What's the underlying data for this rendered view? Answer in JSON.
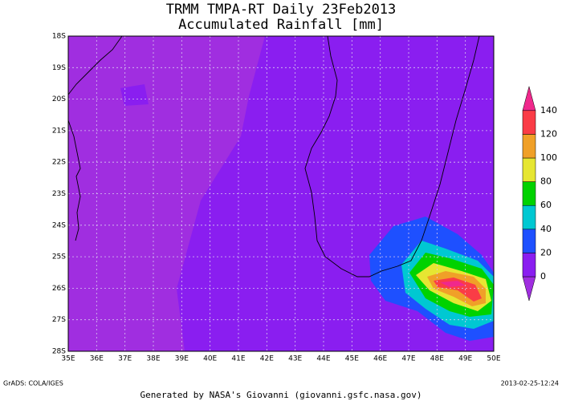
{
  "title": "TRMM TMPA-RT Daily 23Feb2013",
  "subtitle": "Accumulated Rainfall [mm]",
  "lat_labels": [
    "18S",
    "19S",
    "20S",
    "21S",
    "22S",
    "23S",
    "24S",
    "25S",
    "26S",
    "27S",
    "28S"
  ],
  "lon_labels": [
    "35E",
    "36E",
    "37E",
    "38E",
    "39E",
    "40E",
    "41E",
    "42E",
    "43E",
    "44E",
    "45E",
    "46E",
    "47E",
    "48E",
    "49E",
    "50E"
  ],
  "colorbar": {
    "labels": [
      "0",
      "20",
      "40",
      "60",
      "80",
      "100",
      "120",
      "140"
    ],
    "colors": [
      "#a02ee0",
      "#8a1ef0",
      "#1e50ff",
      "#00c8d2",
      "#00d200",
      "#e6e632",
      "#f0a028",
      "#fa3c46",
      "#f0288c"
    ]
  },
  "footer_left": "GrADS: COLA/IGES",
  "footer_right": "2013-02-25-12:24",
  "credit": "Generated by NASA's Giovanni (giovanni.gsfc.nasa.gov)"
}
